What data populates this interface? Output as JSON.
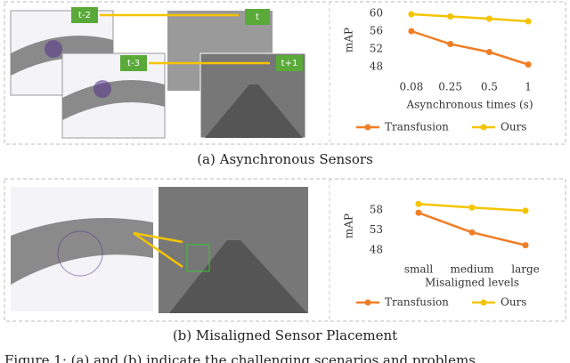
{
  "chart_data": [
    {
      "type": "line",
      "categories": [
        "0.08",
        "0.25",
        "0.5",
        "1"
      ],
      "xlabel": "Asynchronous times (s)",
      "ylabel": "mAP",
      "ylim": [
        46,
        62
      ],
      "yticks": [
        48,
        52,
        56,
        60
      ],
      "series": [
        {
          "name": "Transfusion",
          "color": "#f07e26",
          "values": [
            56,
            53.1,
            51.3,
            48.5
          ]
        },
        {
          "name": "Ours",
          "color": "#f5c400",
          "values": [
            59.8,
            59.3,
            58.8,
            58.2
          ]
        }
      ]
    },
    {
      "type": "line",
      "categories": [
        "small",
        "medium",
        "large"
      ],
      "xlabel": "Misaligned levels",
      "ylabel": "mAP",
      "ylim": [
        46,
        62
      ],
      "yticks": [
        48,
        53,
        58
      ],
      "series": [
        {
          "name": "Transfusion",
          "color": "#f07e26",
          "values": [
            57.3,
            52.4,
            49.2
          ]
        },
        {
          "name": "Ours",
          "color": "#f5c400",
          "values": [
            59.5,
            58.6,
            57.8
          ]
        }
      ]
    }
  ],
  "image_labels": [
    "t-2",
    "t-3",
    "t",
    "t+1"
  ],
  "captions": [
    "(a) Asynchronous Sensors",
    "(b) Misaligned Sensor Placement"
  ],
  "figure_caption": "Figure 1: (a) and (b) indicate the challenging scenarios and problems"
}
